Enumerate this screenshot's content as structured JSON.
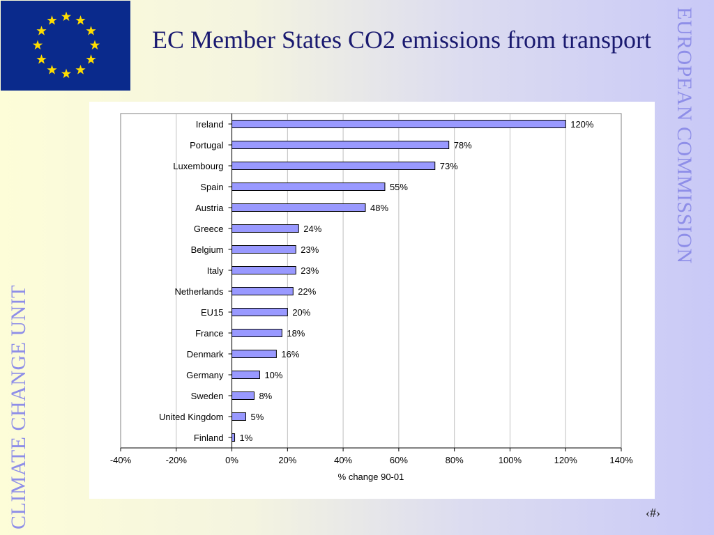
{
  "slide": {
    "title": "EC Member States CO2 emissions from transport",
    "side_right": "EUROPEAN COMMISSION",
    "side_left": "CLIMATE CHANGE UNIT",
    "slide_number": "‹#›"
  },
  "colors": {
    "flag_blue": "#0a2a8c",
    "star_yellow": "#ffdd00",
    "bar_fill": "#9999ff",
    "title": "#1a1a70",
    "side_text": "#8e8ee8"
  },
  "chart_data": {
    "type": "bar",
    "orientation": "horizontal",
    "categories": [
      "Ireland",
      "Portugal",
      "Luxembourg",
      "Spain",
      "Austria",
      "Greece",
      "Belgium",
      "Italy",
      "Netherlands",
      "EU15",
      "France",
      "Denmark",
      "Germany",
      "Sweden",
      "United Kingdom",
      "Finland"
    ],
    "values": [
      120,
      78,
      73,
      55,
      48,
      24,
      23,
      23,
      22,
      20,
      18,
      16,
      10,
      8,
      5,
      1
    ],
    "data_labels": [
      "120%",
      "78%",
      "73%",
      "55%",
      "48%",
      "24%",
      "23%",
      "23%",
      "22%",
      "20%",
      "18%",
      "16%",
      "10%",
      "8%",
      "5%",
      "1%"
    ],
    "xlabel": "% change 90-01",
    "xlim": [
      -40,
      140
    ],
    "xticks": [
      -40,
      -20,
      0,
      20,
      40,
      60,
      80,
      100,
      120,
      140
    ],
    "xtick_labels": [
      "-40%",
      "-20%",
      "0%",
      "20%",
      "40%",
      "60%",
      "80%",
      "100%",
      "120%",
      "140%"
    ],
    "grid": "vertical",
    "legend": "none"
  }
}
